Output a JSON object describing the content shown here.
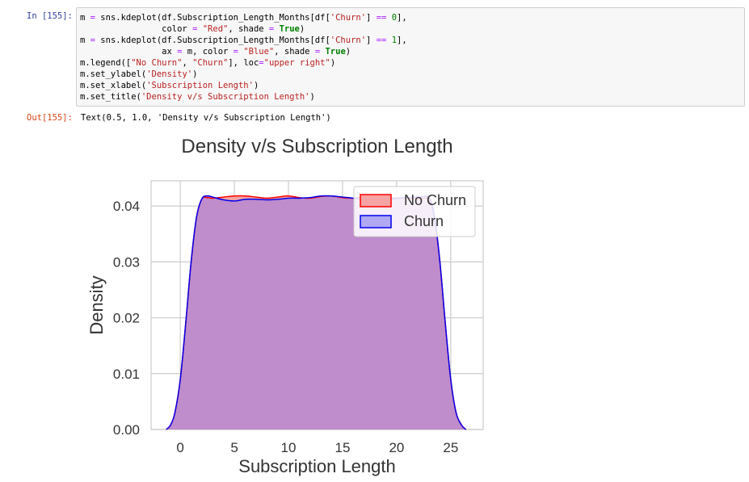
{
  "cell": {
    "in_prompt": "In [155]:",
    "out_prompt": "Out[155]:",
    "output_text": "Text(0.5, 1.0, 'Density v/s Subscription Length')",
    "code_lines": [
      [
        {
          "t": "m "
        },
        {
          "t": "=",
          "c": "op"
        },
        {
          "t": " sns.kdeplot(df.Subscription_Length_Months[df["
        },
        {
          "t": "'Churn'",
          "c": "str"
        },
        {
          "t": "] "
        },
        {
          "t": "==",
          "c": "op"
        },
        {
          "t": " "
        },
        {
          "t": "0",
          "c": "num"
        },
        {
          "t": "],"
        }
      ],
      [
        {
          "t": "                color "
        },
        {
          "t": "=",
          "c": "op"
        },
        {
          "t": " "
        },
        {
          "t": "\"Red\"",
          "c": "str"
        },
        {
          "t": ", shade "
        },
        {
          "t": "=",
          "c": "op"
        },
        {
          "t": " "
        },
        {
          "t": "True",
          "c": "kw"
        },
        {
          "t": ")"
        }
      ],
      [
        {
          "t": "m "
        },
        {
          "t": "=",
          "c": "op"
        },
        {
          "t": " sns.kdeplot(df.Subscription_Length_Months[df["
        },
        {
          "t": "'Churn'",
          "c": "str"
        },
        {
          "t": "] "
        },
        {
          "t": "==",
          "c": "op"
        },
        {
          "t": " "
        },
        {
          "t": "1",
          "c": "num"
        },
        {
          "t": "],"
        }
      ],
      [
        {
          "t": "                ax "
        },
        {
          "t": "=",
          "c": "op"
        },
        {
          "t": " m, color "
        },
        {
          "t": "=",
          "c": "op"
        },
        {
          "t": " "
        },
        {
          "t": "\"Blue\"",
          "c": "str"
        },
        {
          "t": ", shade "
        },
        {
          "t": "=",
          "c": "op"
        },
        {
          "t": " "
        },
        {
          "t": "True",
          "c": "kw"
        },
        {
          "t": ")"
        }
      ],
      [
        {
          "t": "m.legend(["
        },
        {
          "t": "\"No Churn\"",
          "c": "str"
        },
        {
          "t": ", "
        },
        {
          "t": "\"Churn\"",
          "c": "str"
        },
        {
          "t": "], loc"
        },
        {
          "t": "=",
          "c": "op"
        },
        {
          "t": "\"upper right\"",
          "c": "str"
        },
        {
          "t": ")"
        }
      ],
      [
        {
          "t": "m.set_ylabel("
        },
        {
          "t": "'Density'",
          "c": "str"
        },
        {
          "t": ")"
        }
      ],
      [
        {
          "t": "m.set_xlabel("
        },
        {
          "t": "'Subscription Length'",
          "c": "str"
        },
        {
          "t": ")"
        }
      ],
      [
        {
          "t": "m.set_title("
        },
        {
          "t": "'Density v/s Subscription Length'",
          "c": "str"
        },
        {
          "t": ")"
        }
      ]
    ]
  },
  "colors": {
    "no_churn_line": "#ff0000",
    "no_churn_fill": "#f5a3a3",
    "churn_line": "#0000ee",
    "overlap_fill": "#bf8ccc",
    "grid": "#cccccc",
    "axes_bg": "#ffffff"
  },
  "chart_data": {
    "type": "area",
    "title": "Density v/s Subscription Length",
    "xlabel": "Subscription Length",
    "ylabel": "Density",
    "xlim": [
      -2.7,
      28
    ],
    "ylim": [
      0,
      0.0445
    ],
    "xticks": [
      0,
      5,
      10,
      15,
      20,
      25
    ],
    "yticks": [
      0.0,
      0.01,
      0.02,
      0.03,
      0.04
    ],
    "ytick_labels": [
      "0.00",
      "0.01",
      "0.02",
      "0.03",
      "0.04"
    ],
    "grid": true,
    "legend_position": "upper right",
    "series": [
      {
        "name": "No Churn",
        "color": "Red",
        "x": [
          -1.3,
          -0.9,
          -0.5,
          0,
          0.5,
          1,
          1.5,
          2,
          2.5,
          3,
          4,
          5,
          6,
          7,
          8,
          9,
          10,
          11,
          12,
          13,
          14,
          15,
          16,
          17,
          18,
          19,
          20,
          21,
          22,
          23,
          23.5,
          24,
          24.5,
          25,
          25.5,
          26,
          26.4
        ],
        "y": [
          0,
          0.0008,
          0.003,
          0.009,
          0.019,
          0.03,
          0.038,
          0.0413,
          0.0415,
          0.0414,
          0.0416,
          0.0418,
          0.0418,
          0.0416,
          0.0414,
          0.0416,
          0.0418,
          0.0415,
          0.0414,
          0.0417,
          0.0418,
          0.0415,
          0.0414,
          0.0416,
          0.0417,
          0.0415,
          0.0414,
          0.0414,
          0.0413,
          0.0412,
          0.038,
          0.03,
          0.019,
          0.009,
          0.003,
          0.0008,
          0
        ]
      },
      {
        "name": "Churn",
        "color": "Blue",
        "x": [
          -1.3,
          -0.9,
          -0.5,
          0,
          0.5,
          1,
          1.5,
          2,
          2.5,
          3,
          4,
          5,
          6,
          7,
          8,
          9,
          10,
          11,
          12,
          13,
          14,
          15,
          16,
          17,
          18,
          19,
          20,
          21,
          22,
          23,
          23.5,
          24,
          24.5,
          25,
          25.5,
          26,
          26.4
        ],
        "y": [
          0,
          0.0008,
          0.003,
          0.009,
          0.019,
          0.03,
          0.038,
          0.0413,
          0.0418,
          0.0416,
          0.0411,
          0.0409,
          0.0412,
          0.0412,
          0.0411,
          0.0412,
          0.0414,
          0.0414,
          0.0415,
          0.0418,
          0.0418,
          0.0416,
          0.0414,
          0.0412,
          0.041,
          0.0411,
          0.0414,
          0.0415,
          0.0416,
          0.0414,
          0.038,
          0.03,
          0.019,
          0.009,
          0.003,
          0.0008,
          0
        ]
      }
    ]
  }
}
